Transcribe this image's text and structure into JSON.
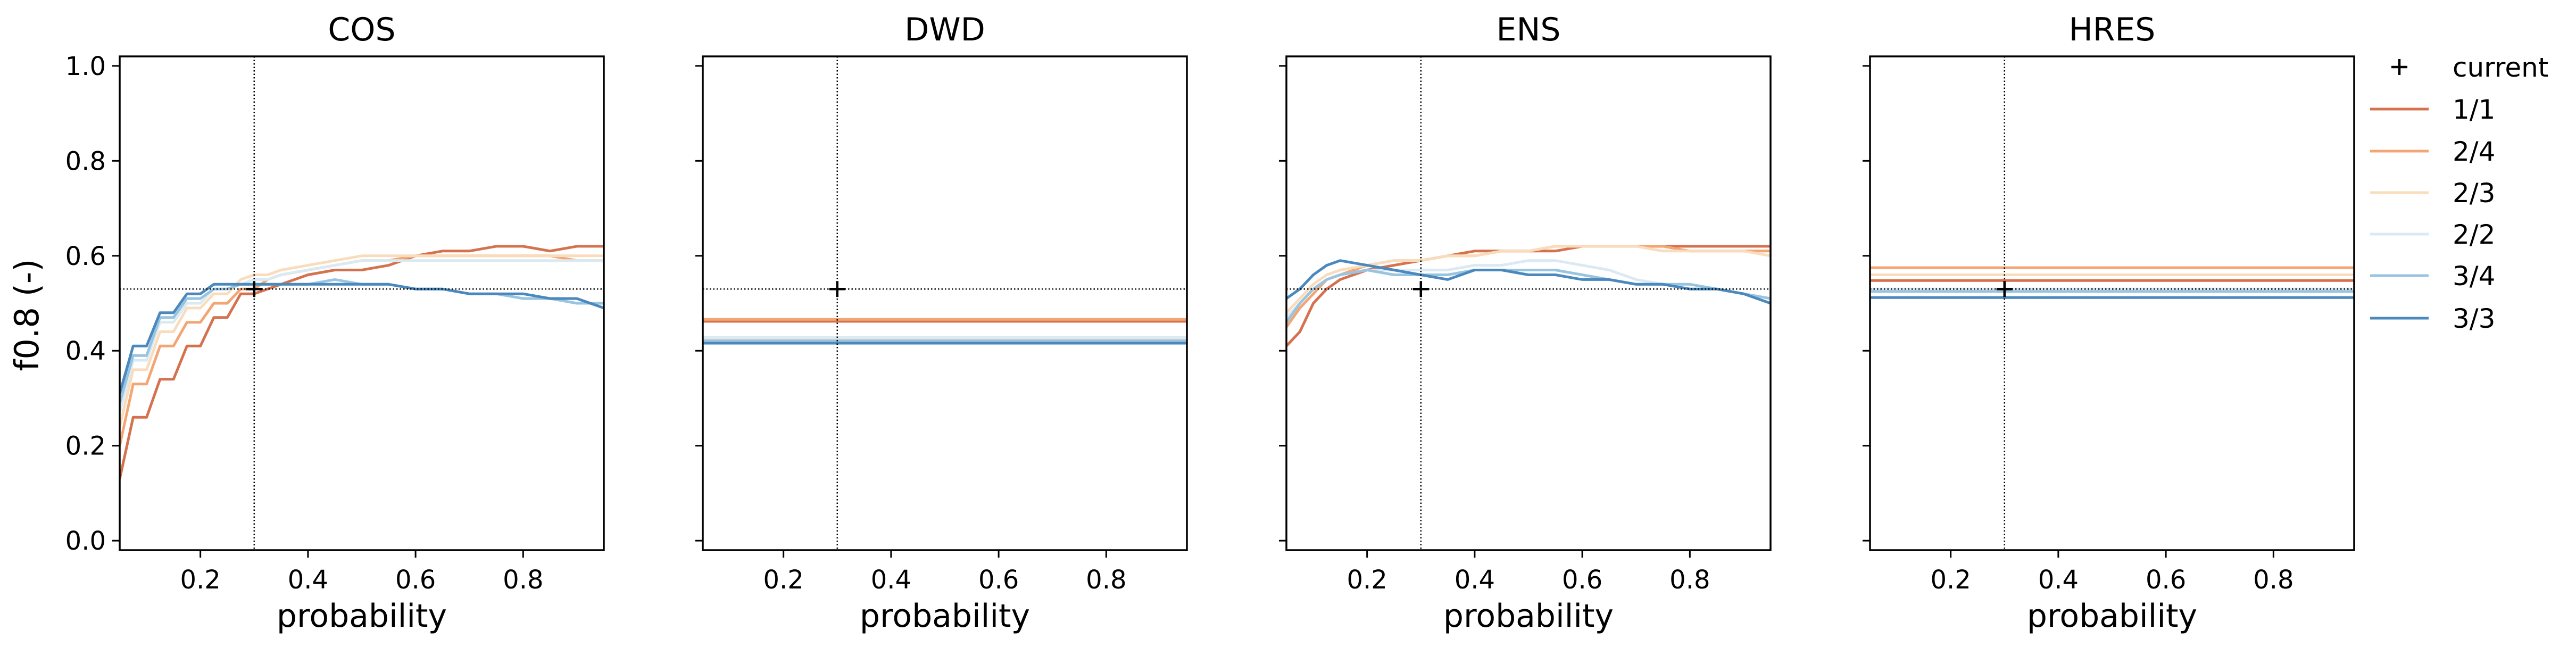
{
  "colors": {
    "1/1": "#d6714e",
    "2/4": "#f4a574",
    "2/3": "#f9dcbc",
    "2/2": "#dbe9f3",
    "3/4": "#98c4e0",
    "3/3": "#4a88bd",
    "marker": "#000000"
  },
  "chart_data": [
    {
      "type": "line",
      "title": "COS",
      "xlabel": "probability",
      "ylabel": "f0.8 (-)",
      "xlim": [
        0.05,
        0.95
      ],
      "ylim": [
        -0.02,
        1.02
      ],
      "xticks": [
        0.2,
        0.4,
        0.6,
        0.8
      ],
      "xtick_labels": [
        "0.2",
        "0.4",
        "0.6",
        "0.8"
      ],
      "yticks": [
        0.0,
        0.2,
        0.4,
        0.6,
        0.8,
        1.0
      ],
      "ytick_labels": [
        "0.0",
        "0.2",
        "0.4",
        "0.6",
        "0.8",
        "1.0"
      ],
      "current": {
        "x": 0.3,
        "y": 0.53
      },
      "series": [
        {
          "name": "1/1",
          "x": [
            0.05,
            0.075,
            0.1,
            0.125,
            0.15,
            0.175,
            0.2,
            0.225,
            0.25,
            0.275,
            0.3,
            0.325,
            0.35,
            0.4,
            0.45,
            0.5,
            0.55,
            0.6,
            0.65,
            0.7,
            0.75,
            0.8,
            0.85,
            0.9,
            0.95
          ],
          "y": [
            0.13,
            0.26,
            0.26,
            0.34,
            0.34,
            0.41,
            0.41,
            0.47,
            0.47,
            0.52,
            0.52,
            0.53,
            0.54,
            0.56,
            0.57,
            0.57,
            0.58,
            0.6,
            0.61,
            0.61,
            0.62,
            0.62,
            0.61,
            0.62,
            0.62
          ]
        },
        {
          "name": "2/4",
          "x": [
            0.05,
            0.075,
            0.1,
            0.125,
            0.15,
            0.175,
            0.2,
            0.225,
            0.25,
            0.275,
            0.3,
            0.325,
            0.35,
            0.4,
            0.45,
            0.5,
            0.55,
            0.6,
            0.65,
            0.7,
            0.75,
            0.8,
            0.85,
            0.9,
            0.95
          ],
          "y": [
            0.2,
            0.33,
            0.33,
            0.41,
            0.41,
            0.46,
            0.46,
            0.5,
            0.5,
            0.53,
            0.53,
            0.55,
            0.56,
            0.57,
            0.58,
            0.59,
            0.59,
            0.6,
            0.6,
            0.6,
            0.6,
            0.6,
            0.6,
            0.59,
            0.59
          ]
        },
        {
          "name": "2/3",
          "x": [
            0.05,
            0.075,
            0.1,
            0.125,
            0.15,
            0.175,
            0.2,
            0.225,
            0.25,
            0.275,
            0.3,
            0.325,
            0.35,
            0.4,
            0.45,
            0.5,
            0.55,
            0.6,
            0.65,
            0.7,
            0.75,
            0.8,
            0.85,
            0.9,
            0.95
          ],
          "y": [
            0.24,
            0.36,
            0.36,
            0.44,
            0.44,
            0.49,
            0.49,
            0.52,
            0.52,
            0.55,
            0.56,
            0.56,
            0.57,
            0.58,
            0.59,
            0.6,
            0.6,
            0.6,
            0.6,
            0.6,
            0.6,
            0.6,
            0.6,
            0.6,
            0.6
          ]
        },
        {
          "name": "2/2",
          "x": [
            0.05,
            0.075,
            0.1,
            0.125,
            0.15,
            0.175,
            0.2,
            0.225,
            0.25,
            0.275,
            0.3,
            0.325,
            0.35,
            0.4,
            0.45,
            0.5,
            0.55,
            0.6,
            0.65,
            0.7,
            0.75,
            0.8,
            0.85,
            0.9,
            0.95
          ],
          "y": [
            0.27,
            0.38,
            0.38,
            0.46,
            0.46,
            0.5,
            0.5,
            0.53,
            0.53,
            0.54,
            0.55,
            0.55,
            0.56,
            0.57,
            0.58,
            0.59,
            0.59,
            0.59,
            0.59,
            0.59,
            0.59,
            0.59,
            0.59,
            0.59,
            0.59
          ]
        },
        {
          "name": "3/4",
          "x": [
            0.05,
            0.075,
            0.1,
            0.125,
            0.15,
            0.175,
            0.2,
            0.225,
            0.25,
            0.275,
            0.3,
            0.325,
            0.35,
            0.4,
            0.45,
            0.5,
            0.55,
            0.6,
            0.65,
            0.7,
            0.75,
            0.8,
            0.85,
            0.9,
            0.95
          ],
          "y": [
            0.29,
            0.39,
            0.39,
            0.47,
            0.47,
            0.51,
            0.51,
            0.53,
            0.53,
            0.54,
            0.54,
            0.54,
            0.54,
            0.54,
            0.55,
            0.54,
            0.54,
            0.53,
            0.53,
            0.52,
            0.52,
            0.51,
            0.51,
            0.5,
            0.5
          ]
        },
        {
          "name": "3/3",
          "x": [
            0.05,
            0.075,
            0.1,
            0.125,
            0.15,
            0.175,
            0.2,
            0.225,
            0.25,
            0.275,
            0.3,
            0.325,
            0.35,
            0.4,
            0.45,
            0.5,
            0.55,
            0.6,
            0.65,
            0.7,
            0.75,
            0.8,
            0.85,
            0.9,
            0.95
          ],
          "y": [
            0.31,
            0.41,
            0.41,
            0.48,
            0.48,
            0.52,
            0.52,
            0.54,
            0.54,
            0.54,
            0.54,
            0.54,
            0.54,
            0.54,
            0.54,
            0.54,
            0.54,
            0.53,
            0.53,
            0.52,
            0.52,
            0.52,
            0.51,
            0.51,
            0.49
          ]
        }
      ]
    },
    {
      "type": "line",
      "title": "DWD",
      "xlabel": "probability",
      "ylabel": "",
      "xlim": [
        0.05,
        0.95
      ],
      "ylim": [
        -0.02,
        1.02
      ],
      "xticks": [
        0.2,
        0.4,
        0.6,
        0.8
      ],
      "xtick_labels": [
        "0.2",
        "0.4",
        "0.6",
        "0.8"
      ],
      "yticks": [
        0.0,
        0.2,
        0.4,
        0.6,
        0.8,
        1.0
      ],
      "ytick_labels": [
        "",
        "",
        "",
        "",
        "",
        ""
      ],
      "current": {
        "x": 0.3,
        "y": 0.53
      },
      "series": [
        {
          "name": "1/1",
          "x": [
            0.05,
            0.95
          ],
          "y": [
            0.462,
            0.462
          ]
        },
        {
          "name": "2/4",
          "x": [
            0.05,
            0.95
          ],
          "y": [
            0.466,
            0.466
          ]
        },
        {
          "name": "2/3",
          "x": [
            0.05,
            0.95
          ],
          "y": [
            0.424,
            0.424
          ]
        },
        {
          "name": "2/2",
          "x": [
            0.05,
            0.95
          ],
          "y": [
            0.428,
            0.428
          ]
        },
        {
          "name": "3/4",
          "x": [
            0.05,
            0.95
          ],
          "y": [
            0.421,
            0.421
          ]
        },
        {
          "name": "3/3",
          "x": [
            0.05,
            0.95
          ],
          "y": [
            0.416,
            0.416
          ]
        }
      ]
    },
    {
      "type": "line",
      "title": "ENS",
      "xlabel": "probability",
      "ylabel": "",
      "xlim": [
        0.05,
        0.95
      ],
      "ylim": [
        -0.02,
        1.02
      ],
      "xticks": [
        0.2,
        0.4,
        0.6,
        0.8
      ],
      "xtick_labels": [
        "0.2",
        "0.4",
        "0.6",
        "0.8"
      ],
      "yticks": [
        0.0,
        0.2,
        0.4,
        0.6,
        0.8,
        1.0
      ],
      "ytick_labels": [
        "",
        "",
        "",
        "",
        "",
        ""
      ],
      "current": {
        "x": 0.3,
        "y": 0.53
      },
      "series": [
        {
          "name": "1/1",
          "x": [
            0.05,
            0.075,
            0.1,
            0.125,
            0.15,
            0.2,
            0.25,
            0.3,
            0.35,
            0.4,
            0.45,
            0.5,
            0.55,
            0.6,
            0.65,
            0.7,
            0.75,
            0.8,
            0.85,
            0.9,
            0.95
          ],
          "y": [
            0.41,
            0.44,
            0.5,
            0.53,
            0.55,
            0.57,
            0.58,
            0.59,
            0.6,
            0.61,
            0.61,
            0.61,
            0.61,
            0.62,
            0.62,
            0.62,
            0.62,
            0.62,
            0.62,
            0.62,
            0.62
          ]
        },
        {
          "name": "2/4",
          "x": [
            0.05,
            0.075,
            0.1,
            0.125,
            0.15,
            0.2,
            0.25,
            0.3,
            0.35,
            0.4,
            0.45,
            0.5,
            0.55,
            0.6,
            0.65,
            0.7,
            0.75,
            0.8,
            0.85,
            0.9,
            0.95
          ],
          "y": [
            0.45,
            0.49,
            0.52,
            0.55,
            0.56,
            0.58,
            0.59,
            0.59,
            0.6,
            0.6,
            0.61,
            0.61,
            0.62,
            0.62,
            0.62,
            0.62,
            0.62,
            0.61,
            0.61,
            0.61,
            0.61
          ]
        },
        {
          "name": "2/3",
          "x": [
            0.05,
            0.075,
            0.1,
            0.125,
            0.15,
            0.2,
            0.25,
            0.3,
            0.35,
            0.4,
            0.45,
            0.5,
            0.55,
            0.6,
            0.65,
            0.7,
            0.75,
            0.8,
            0.85,
            0.9,
            0.95
          ],
          "y": [
            0.48,
            0.51,
            0.54,
            0.56,
            0.57,
            0.58,
            0.59,
            0.59,
            0.6,
            0.6,
            0.61,
            0.61,
            0.62,
            0.62,
            0.62,
            0.62,
            0.61,
            0.61,
            0.61,
            0.61,
            0.6
          ]
        },
        {
          "name": "2/2",
          "x": [
            0.05,
            0.075,
            0.1,
            0.125,
            0.15,
            0.2,
            0.25,
            0.3,
            0.35,
            0.4,
            0.45,
            0.5,
            0.55,
            0.6,
            0.65,
            0.7,
            0.75,
            0.8,
            0.85,
            0.9,
            0.95
          ],
          "y": [
            0.47,
            0.5,
            0.53,
            0.55,
            0.56,
            0.57,
            0.57,
            0.57,
            0.57,
            0.58,
            0.58,
            0.59,
            0.59,
            0.58,
            0.57,
            0.55,
            0.54,
            0.54,
            0.53,
            0.52,
            0.51
          ]
        },
        {
          "name": "3/4",
          "x": [
            0.05,
            0.075,
            0.1,
            0.125,
            0.15,
            0.2,
            0.25,
            0.3,
            0.35,
            0.4,
            0.45,
            0.5,
            0.55,
            0.6,
            0.65,
            0.7,
            0.75,
            0.8,
            0.85,
            0.9,
            0.95
          ],
          "y": [
            0.46,
            0.5,
            0.53,
            0.55,
            0.56,
            0.57,
            0.56,
            0.56,
            0.56,
            0.57,
            0.57,
            0.57,
            0.57,
            0.56,
            0.55,
            0.54,
            0.54,
            0.54,
            0.53,
            0.52,
            0.51
          ]
        },
        {
          "name": "3/3",
          "x": [
            0.05,
            0.075,
            0.1,
            0.125,
            0.15,
            0.2,
            0.25,
            0.3,
            0.35,
            0.4,
            0.45,
            0.5,
            0.55,
            0.6,
            0.65,
            0.7,
            0.75,
            0.8,
            0.85,
            0.9,
            0.95
          ],
          "y": [
            0.51,
            0.53,
            0.56,
            0.58,
            0.59,
            0.58,
            0.57,
            0.56,
            0.55,
            0.57,
            0.57,
            0.56,
            0.56,
            0.55,
            0.55,
            0.54,
            0.54,
            0.53,
            0.53,
            0.52,
            0.5
          ]
        }
      ]
    },
    {
      "type": "line",
      "title": "HRES",
      "xlabel": "probability",
      "ylabel": "",
      "xlim": [
        0.05,
        0.95
      ],
      "ylim": [
        -0.02,
        1.02
      ],
      "xticks": [
        0.2,
        0.4,
        0.6,
        0.8
      ],
      "xtick_labels": [
        "0.2",
        "0.4",
        "0.6",
        "0.8"
      ],
      "yticks": [
        0.0,
        0.2,
        0.4,
        0.6,
        0.8,
        1.0
      ],
      "ytick_labels": [
        "",
        "",
        "",
        "",
        "",
        ""
      ],
      "current": {
        "x": 0.3,
        "y": 0.53
      },
      "series": [
        {
          "name": "1/1",
          "x": [
            0.05,
            0.95
          ],
          "y": [
            0.548,
            0.548
          ]
        },
        {
          "name": "2/4",
          "x": [
            0.05,
            0.95
          ],
          "y": [
            0.575,
            0.575
          ]
        },
        {
          "name": "2/3",
          "x": [
            0.05,
            0.95
          ],
          "y": [
            0.56,
            0.56
          ]
        },
        {
          "name": "2/2",
          "x": [
            0.05,
            0.95
          ],
          "y": [
            0.53,
            0.53
          ]
        },
        {
          "name": "3/4",
          "x": [
            0.05,
            0.95
          ],
          "y": [
            0.525,
            0.525
          ]
        },
        {
          "name": "3/3",
          "x": [
            0.05,
            0.95
          ],
          "y": [
            0.512,
            0.512
          ]
        }
      ]
    }
  ],
  "legend": {
    "placement": "right",
    "entries": [
      {
        "label": "current",
        "kind": "marker"
      },
      {
        "label": "1/1",
        "kind": "line"
      },
      {
        "label": "2/4",
        "kind": "line"
      },
      {
        "label": "2/3",
        "kind": "line"
      },
      {
        "label": "2/2",
        "kind": "line"
      },
      {
        "label": "3/4",
        "kind": "line"
      },
      {
        "label": "3/3",
        "kind": "line"
      }
    ]
  }
}
